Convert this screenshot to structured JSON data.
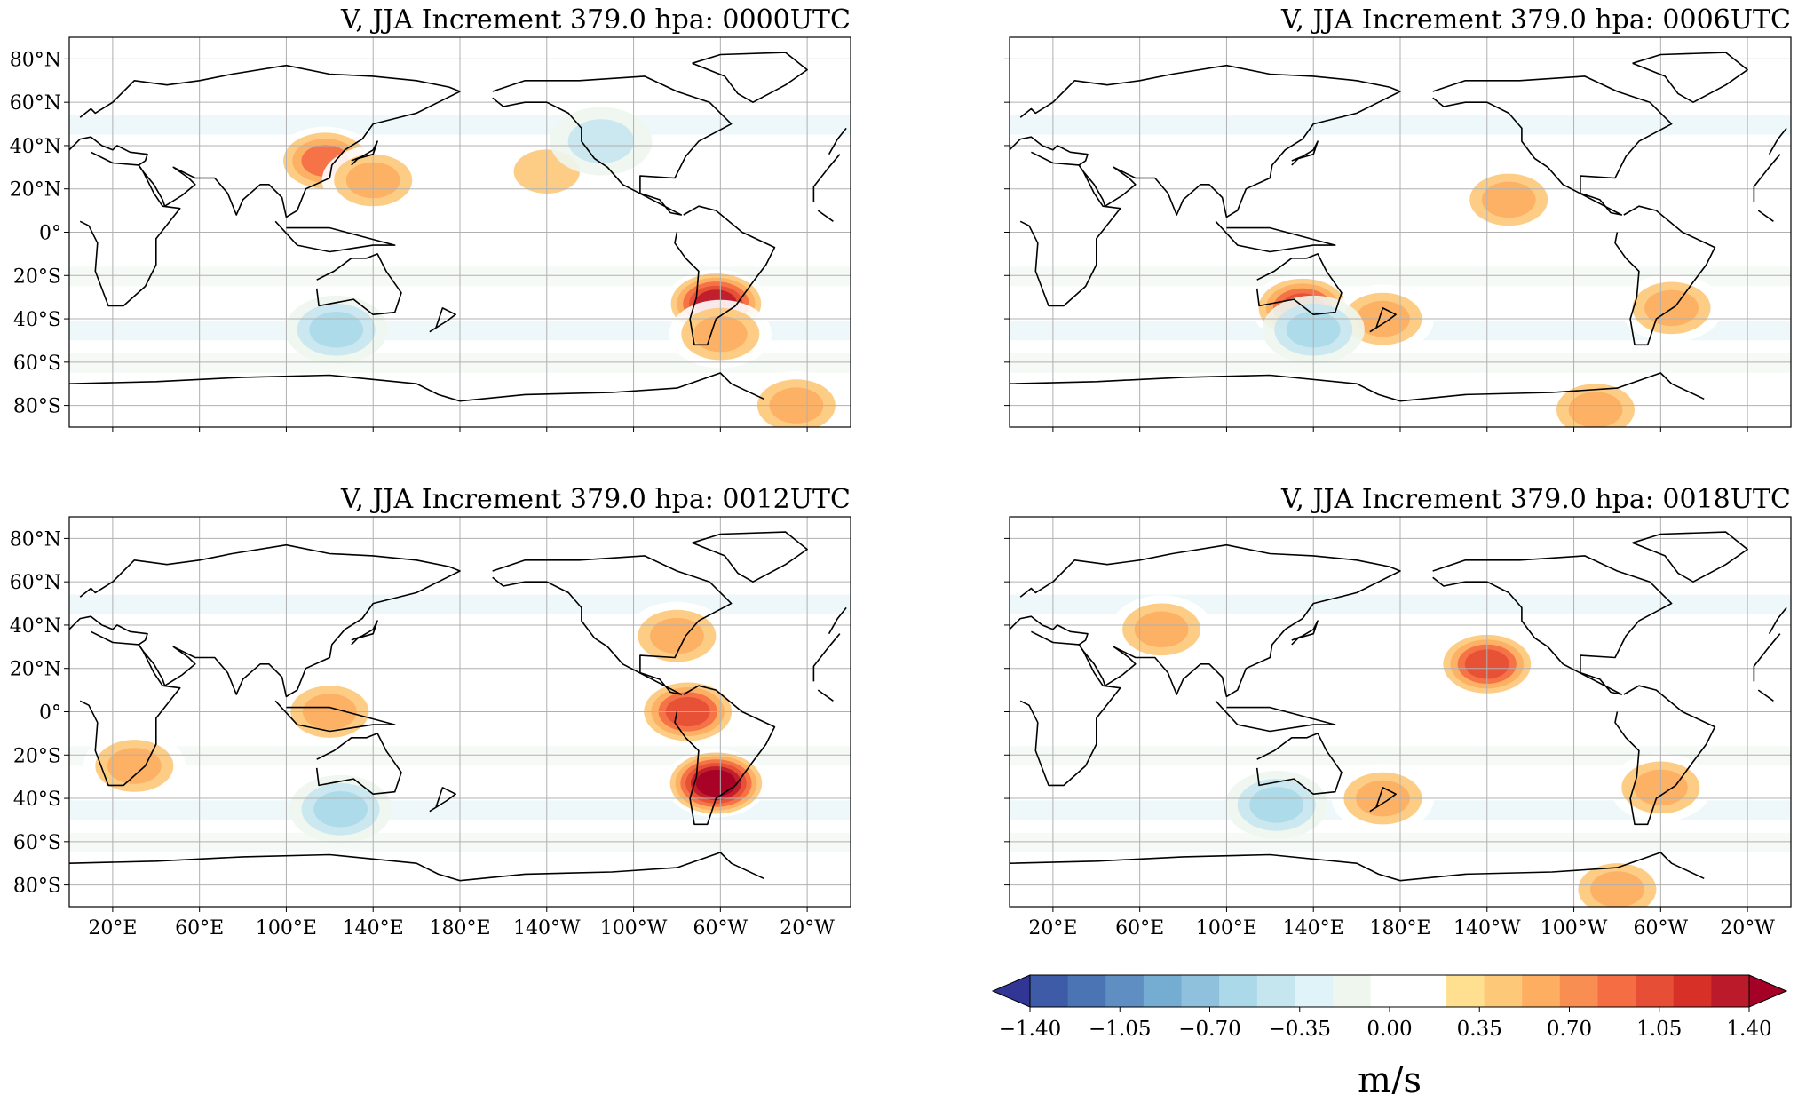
{
  "panels": [
    {
      "title": "V, JJA Increment 379.0 hpa: 0000UTC",
      "show_y_labels": true,
      "show_x_labels": false
    },
    {
      "title": "V, JJA Increment 379.0 hpa: 0006UTC",
      "show_y_labels": false,
      "show_x_labels": false
    },
    {
      "title": "V, JJA Increment 379.0 hpa: 0012UTC",
      "show_y_labels": true,
      "show_x_labels": true
    },
    {
      "title": "V, JJA Increment 379.0 hpa: 0018UTC",
      "show_y_labels": false,
      "show_x_labels": true
    }
  ],
  "lat_ticks": [
    "80°N",
    "60°N",
    "40°N",
    "20°N",
    "0°",
    "20°S",
    "40°S",
    "60°S",
    "80°S"
  ],
  "lon_ticks": [
    "20°E",
    "60°E",
    "100°E",
    "140°E",
    "180°E",
    "140°W",
    "100°W",
    "60°W",
    "20°W"
  ],
  "colorbar": {
    "tick_labels": [
      "−1.40",
      "−1.05",
      "−0.70",
      "−0.35",
      "0.00",
      "0.35",
      "0.70",
      "1.05",
      "1.40"
    ],
    "unit": "m/s",
    "colors": [
      "#313695",
      "#3d5ba6",
      "#4a74b4",
      "#5f8fc2",
      "#74add1",
      "#8fc0dc",
      "#abd9e9",
      "#c6e6ef",
      "#e0f3f8",
      "#eef6ee",
      "#ffffff",
      "#ffffff",
      "#fee090",
      "#fdc878",
      "#fdae61",
      "#f98e52",
      "#f46d43",
      "#e64f35",
      "#d73027",
      "#bb1a2a",
      "#a50026"
    ]
  },
  "chart_data": {
    "type": "heatmap",
    "variable": "V",
    "unit": "m/s",
    "vmin": -1.4,
    "vmax": 1.4,
    "features_by_panel": [
      {
        "panel": "0000UTC",
        "blobs": [
          {
            "lon": -62,
            "lat": -33,
            "value": 1.1
          },
          {
            "lon": 118,
            "lat": 33,
            "value": 0.8
          },
          {
            "lon": 140,
            "lat": 24,
            "value": 0.6
          },
          {
            "lon": -60,
            "lat": -47,
            "value": 0.5
          },
          {
            "lon": 123,
            "lat": -45,
            "value": -0.6
          },
          {
            "lon": -25,
            "lat": -80,
            "value": 0.6
          },
          {
            "lon": -140,
            "lat": 28,
            "value": 0.4
          },
          {
            "lon": -115,
            "lat": 42,
            "value": -0.4
          }
        ]
      },
      {
        "panel": "0006UTC",
        "blobs": [
          {
            "lon": 135,
            "lat": -35,
            "value": 0.9
          },
          {
            "lon": 172,
            "lat": -40,
            "value": 0.7
          },
          {
            "lon": -55,
            "lat": -35,
            "value": 0.5
          },
          {
            "lon": 140,
            "lat": -45,
            "value": -0.7
          },
          {
            "lon": -130,
            "lat": 15,
            "value": 0.5
          },
          {
            "lon": -90,
            "lat": -82,
            "value": 0.5
          }
        ]
      },
      {
        "panel": "0012UTC",
        "blobs": [
          {
            "lon": -62,
            "lat": -33,
            "value": 1.3
          },
          {
            "lon": -75,
            "lat": 0,
            "value": 0.9
          },
          {
            "lon": 120,
            "lat": 0,
            "value": 0.6
          },
          {
            "lon": 30,
            "lat": -25,
            "value": 0.6
          },
          {
            "lon": 125,
            "lat": -45,
            "value": -0.5
          },
          {
            "lon": -80,
            "lat": 35,
            "value": 0.5
          }
        ]
      },
      {
        "panel": "0018UTC",
        "blobs": [
          {
            "lon": -140,
            "lat": 22,
            "value": 0.9
          },
          {
            "lon": 172,
            "lat": -40,
            "value": 0.7
          },
          {
            "lon": -60,
            "lat": -35,
            "value": 0.6
          },
          {
            "lon": 123,
            "lat": -43,
            "value": -0.7
          },
          {
            "lon": 70,
            "lat": 38,
            "value": 0.5
          },
          {
            "lon": -80,
            "lat": -82,
            "value": 0.6
          }
        ]
      }
    ]
  }
}
